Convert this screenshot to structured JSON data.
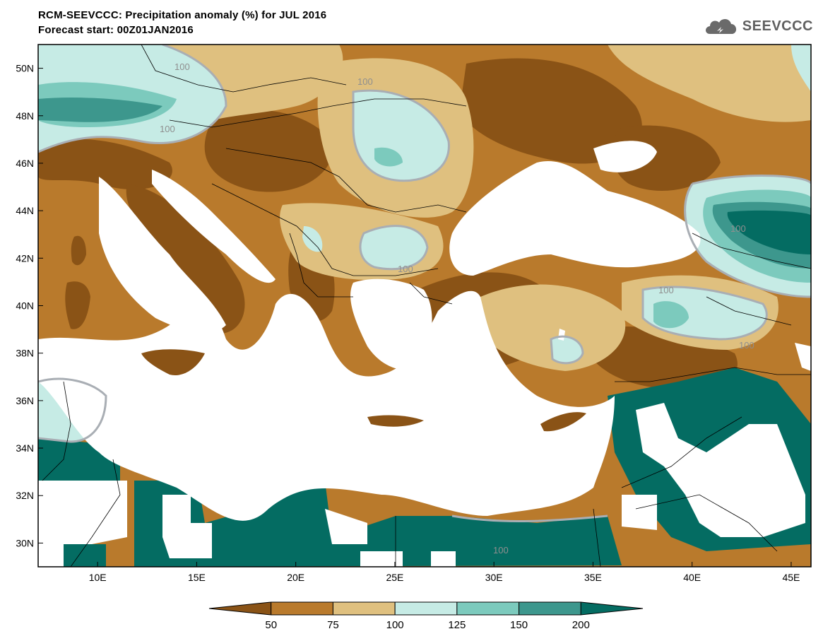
{
  "header": {
    "title": "RCM-SEEVCCC: Precipitation anomaly (%) for JUL 2016",
    "subtitle": "Forecast start: 00Z01JAN2016",
    "logo_text": "SEEVCCC",
    "logo_icon": "cloud-logo-icon"
  },
  "map": {
    "lat_ticks": [
      "50N",
      "48N",
      "46N",
      "44N",
      "42N",
      "40N",
      "38N",
      "36N",
      "34N",
      "32N",
      "30N"
    ],
    "lon_ticks": [
      "10E",
      "15E",
      "20E",
      "25E",
      "30E",
      "35E",
      "40E",
      "45E"
    ],
    "contour_labels": [
      "100",
      "100",
      "100",
      "100",
      "100",
      "100",
      "100",
      "100"
    ],
    "extent": {
      "lon": [
        7,
        46
      ],
      "lat": [
        29,
        51
      ]
    }
  },
  "colorbar": {
    "ticks": [
      "50",
      "75",
      "100",
      "125",
      "150",
      "200"
    ],
    "colors": [
      "#8a5316",
      "#b97a2c",
      "#dfc07f",
      "#c6ebe5",
      "#7ccabd",
      "#3d978d",
      "#046c62"
    ]
  },
  "colors": {
    "sea": "#ffffff",
    "desert_mask": "#ffffff",
    "contour_100": "#a9aeb4",
    "border": "#000000"
  }
}
